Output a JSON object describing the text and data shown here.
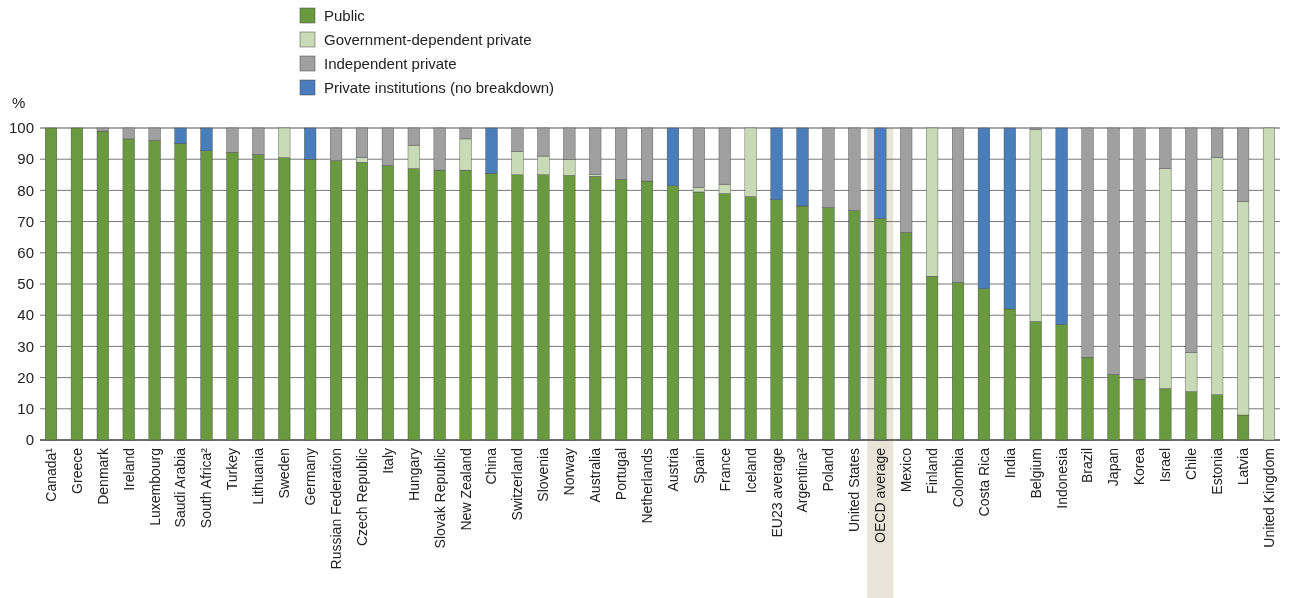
{
  "chart_data": {
    "type": "bar",
    "stacked": true,
    "ylabel": "%",
    "ylim": [
      0,
      100
    ],
    "yticks": [
      0,
      10,
      20,
      30,
      40,
      50,
      60,
      70,
      80,
      90,
      100
    ],
    "grid": "y",
    "legend": "top",
    "categories": [
      "Canada¹",
      "Greece",
      "Denmark",
      "Ireland",
      "Luxembourg",
      "Saudi Arabia",
      "South Africa²",
      "Turkey",
      "Lithuania",
      "Sweden",
      "Germany",
      "Russian Federation",
      "Czech Republic",
      "Italy",
      "Hungary",
      "Slovak Republic",
      "New Zealand",
      "China",
      "Switzerland",
      "Slovenia",
      "Norway",
      "Australia",
      "Portugal",
      "Netherlands",
      "Austria",
      "Spain",
      "France",
      "Iceland",
      "EU23 average",
      "Argentina²",
      "Poland",
      "United States",
      "OECD average",
      "Mexico",
      "Finland",
      "Colombia",
      "Costa Rica",
      "India",
      "Belgium",
      "Indonesia",
      "Brazil",
      "Japan",
      "Korea",
      "Israel",
      "Chile",
      "Estonia",
      "Latvia",
      "United Kingdom"
    ],
    "series": [
      {
        "name": "Public",
        "color": "#6a9a3f",
        "values": [
          100,
          100,
          99,
          96.5,
          96,
          95,
          92.7,
          92.2,
          91.5,
          90.5,
          90,
          89.5,
          89,
          88,
          87,
          86.5,
          86.5,
          85.5,
          85,
          85,
          84.8,
          84.5,
          83.5,
          83,
          81.5,
          79.5,
          79,
          78,
          77,
          75,
          74.5,
          73.5,
          71,
          66.5,
          52.5,
          50.5,
          48.5,
          42,
          38,
          37,
          26.5,
          21,
          19.5,
          16.5,
          15.5,
          14.5,
          8,
          0
        ]
      },
      {
        "name": "Government-dependent private",
        "color": "#c9dbb6",
        "values": [
          0,
          0,
          0,
          0,
          0,
          0,
          0,
          0,
          0,
          9.5,
          0,
          0,
          1.5,
          0,
          7.5,
          0,
          10,
          0,
          7.5,
          6,
          5.2,
          0.5,
          0,
          0,
          0,
          1.5,
          3,
          22,
          0,
          0,
          0,
          0,
          0,
          0,
          47.5,
          0,
          0,
          0,
          61.5,
          0,
          0,
          0,
          0,
          70.5,
          12.5,
          76,
          68.5,
          100
        ]
      },
      {
        "name": "Independent private",
        "color": "#a0a0a0",
        "values": [
          0,
          0,
          1,
          3.5,
          4,
          0,
          0,
          7.8,
          8.5,
          0,
          0,
          10.5,
          9.5,
          12,
          5.5,
          13.5,
          3.5,
          0,
          7.5,
          9,
          10,
          15,
          16.5,
          17,
          0,
          19,
          18,
          0,
          0,
          0,
          25.5,
          26.5,
          0,
          33.5,
          0,
          49.5,
          0,
          0,
          0.5,
          0,
          73.5,
          79,
          80.5,
          13,
          72,
          9.5,
          23.5,
          0
        ]
      },
      {
        "name": "Private institutions (no breakdown)",
        "color": "#4a7ebb",
        "values": [
          0,
          0,
          0,
          0,
          0,
          5,
          7.3,
          0,
          0,
          0,
          10,
          0,
          0,
          0,
          0,
          0,
          0,
          14.5,
          0,
          0,
          0,
          0,
          0,
          0,
          18.5,
          0,
          0,
          0,
          23,
          25,
          0,
          0,
          29,
          0,
          0,
          0,
          51.5,
          58,
          0,
          63,
          0,
          0,
          0,
          0,
          0,
          0,
          0,
          0
        ]
      }
    ],
    "bands": [
      {
        "axis": "x",
        "from": "OECD average",
        "to": "OECD average",
        "color": "#e8e4d8"
      }
    ]
  }
}
